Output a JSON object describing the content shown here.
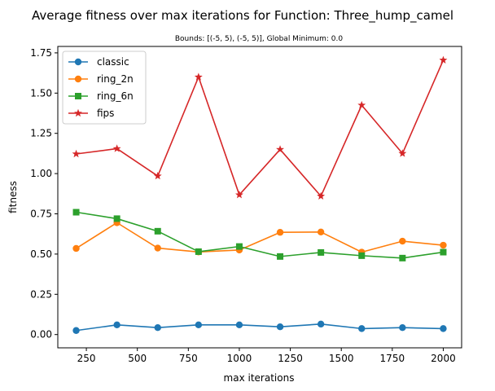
{
  "chart_data": {
    "type": "line",
    "title": "Average fitness over max iterations for Function: Three_hump_camel",
    "subtitle": "Bounds: [(-5, 5), (-5, 5)], Global Minimum: 0.0",
    "xlabel": "max iterations",
    "ylabel": "fitness",
    "xlim": [
      110,
      2090
    ],
    "ylim": [
      -0.0825,
      1.79
    ],
    "xticks": [
      250,
      500,
      750,
      1000,
      1250,
      1500,
      1750,
      2000
    ],
    "yticks": [
      0.0,
      0.25,
      0.5,
      0.75,
      1.0,
      1.25,
      1.5,
      1.75
    ],
    "xtick_labels": [
      "250",
      "500",
      "750",
      "1000",
      "1250",
      "1500",
      "1750",
      "2000"
    ],
    "ytick_labels": [
      "0.00",
      "0.25",
      "0.50",
      "0.75",
      "1.00",
      "1.25",
      "1.50",
      "1.75"
    ],
    "grid": false,
    "legend_position": "top-left",
    "x": [
      200,
      400,
      600,
      800,
      1000,
      1200,
      1400,
      1600,
      1800,
      2000
    ],
    "series": [
      {
        "name": "classic",
        "color": "#1f77b4",
        "marker": "circle",
        "values": [
          0.025,
          0.06,
          0.043,
          0.06,
          0.06,
          0.048,
          0.065,
          0.037,
          0.043,
          0.037
        ]
      },
      {
        "name": "ring_2n",
        "color": "#ff7f0e",
        "marker": "circle",
        "values": [
          0.535,
          0.695,
          0.537,
          0.513,
          0.525,
          0.635,
          0.637,
          0.512,
          0.58,
          0.555
        ]
      },
      {
        "name": "ring_6n",
        "color": "#2ca02c",
        "marker": "square",
        "values": [
          0.76,
          0.72,
          0.642,
          0.515,
          0.547,
          0.485,
          0.51,
          0.49,
          0.475,
          0.512
        ]
      },
      {
        "name": "fips",
        "color": "#d62728",
        "marker": "star",
        "values": [
          1.122,
          1.155,
          0.985,
          1.6,
          0.868,
          1.15,
          0.86,
          1.425,
          1.125,
          1.705
        ]
      }
    ]
  }
}
